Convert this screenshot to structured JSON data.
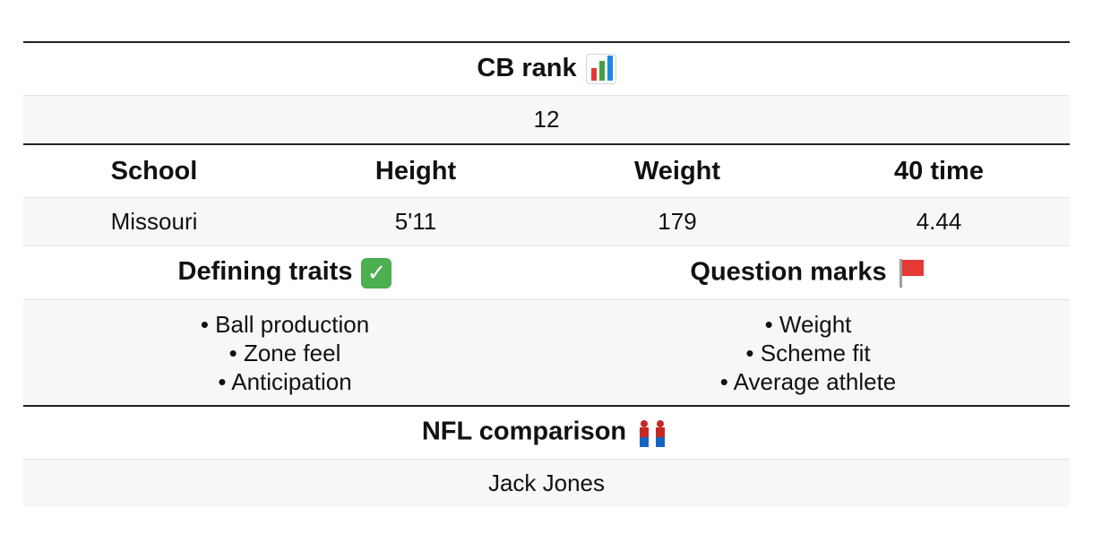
{
  "rank": {
    "label": "CB rank",
    "icon": "bar-chart-icon",
    "value": "12"
  },
  "stats": {
    "headers": [
      "School",
      "Height",
      "Weight",
      "40 time"
    ],
    "values": [
      "Missouri",
      "5'11",
      "179",
      "4.44"
    ]
  },
  "traits": {
    "defining_label": "Defining traits",
    "defining_icon": "check-mark-icon",
    "question_label": "Question marks",
    "question_icon": "red-flag-icon",
    "defining": [
      "• Ball production",
      "• Zone feel",
      "• Anticipation"
    ],
    "questions": [
      "• Weight",
      "• Scheme fit",
      "• Average athlete"
    ]
  },
  "comparison": {
    "label": "NFL comparison",
    "icon": "fighting-people-icon",
    "value": "Jack Jones"
  },
  "colors": {
    "value_bg": "#f7f7f7",
    "rule": "#222222"
  }
}
